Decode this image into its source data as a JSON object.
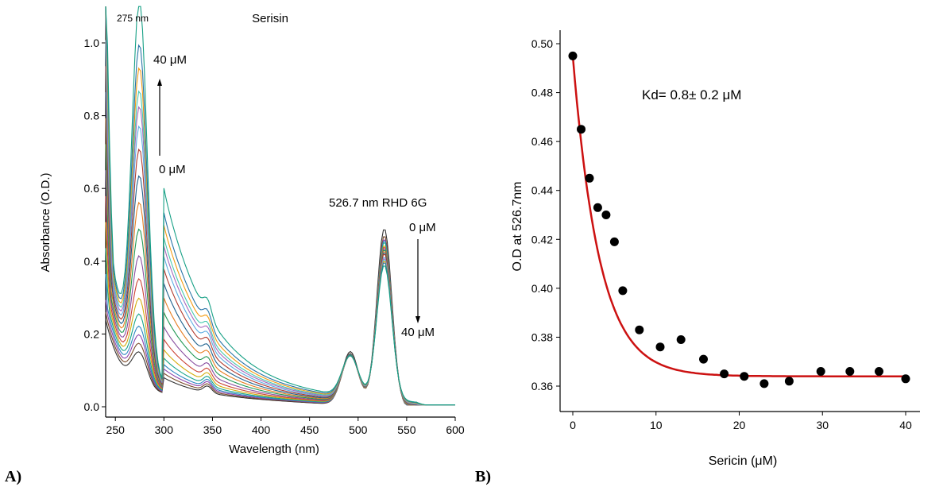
{
  "panels": {
    "a_label": "A)",
    "b_label": "B)"
  },
  "chart_data": [
    {
      "type": "line",
      "title": "Serisin",
      "xlabel": "Wavelength (nm)",
      "ylabel": "Absorbance (O.D.)",
      "xlim": [
        240,
        600
      ],
      "ylim": [
        0,
        1.1
      ],
      "xticks": [
        250,
        300,
        350,
        400,
        450,
        500,
        550,
        600
      ],
      "yticks": [
        0.0,
        0.2,
        0.4,
        0.6,
        0.8,
        1.0
      ],
      "xtick_labels": [
        "250",
        "300",
        "350",
        "400",
        "450",
        "500",
        "550",
        "600"
      ],
      "ytick_labels": [
        "0.0",
        "0.2",
        "0.4",
        "0.6",
        "0.8",
        "1.0"
      ],
      "grid": false,
      "annotations": {
        "peak1": "275 nm",
        "conc_top": "40 μM",
        "conc_bottom": "0 μM",
        "peak2": "526.7 nm RHD 6G",
        "conc_top2": "0 μM",
        "conc_bottom2": "40 μM"
      },
      "series_count": 18,
      "peak275_values": [
        0.09,
        0.11,
        0.13,
        0.15,
        0.18,
        0.22,
        0.27,
        0.33,
        0.4,
        0.47,
        0.54,
        0.61,
        0.67,
        0.72,
        0.76,
        0.82,
        0.88,
        1.0
      ],
      "peak527_values": [
        0.49,
        0.47,
        0.46,
        0.455,
        0.45,
        0.44,
        0.435,
        0.43,
        0.425,
        0.42,
        0.415,
        0.41,
        0.4,
        0.395,
        0.39,
        0.385,
        0.38,
        0.37
      ],
      "colors": [
        "#333333",
        "#7a4a2a",
        "#8e44ad",
        "#2e86c1",
        "#17a589",
        "#d4ac0d",
        "#cb4335",
        "#884ea0",
        "#229954",
        "#e67e22",
        "#1f618d",
        "#b03a2e",
        "#5dade2",
        "#a569bd",
        "#48c9b0",
        "#f39c12",
        "#2874a6",
        "#16a085"
      ]
    },
    {
      "type": "scatter",
      "xlabel": "Sericin (μM)",
      "ylabel": "O.D at 526.7nm",
      "xlim": [
        -1.5,
        41
      ],
      "ylim": [
        0.35,
        0.505
      ],
      "xticks": [
        0,
        10,
        20,
        30,
        40
      ],
      "yticks": [
        0.36,
        0.38,
        0.4,
        0.42,
        0.44,
        0.46,
        0.48,
        0.5
      ],
      "xtick_labels": [
        "0",
        "10",
        "20",
        "30",
        "40"
      ],
      "ytick_labels": [
        "0.36",
        "0.38",
        "0.40",
        "0.42",
        "0.44",
        "0.46",
        "0.48",
        "0.50"
      ],
      "grid": false,
      "annotation": "Kd= 0.8± 0.2 μM",
      "x": [
        0,
        1,
        2,
        3,
        4,
        5,
        6,
        8,
        10.5,
        13,
        15.7,
        18.2,
        20.6,
        23,
        26,
        29.8,
        33.3,
        36.8,
        40
      ],
      "y": [
        0.495,
        0.465,
        0.445,
        0.433,
        0.43,
        0.419,
        0.399,
        0.383,
        0.376,
        0.379,
        0.371,
        0.365,
        0.364,
        0.361,
        0.362,
        0.366,
        0.366,
        0.366,
        0.363
      ],
      "fit_color": "#cc1111",
      "point_color": "#000000"
    }
  ]
}
